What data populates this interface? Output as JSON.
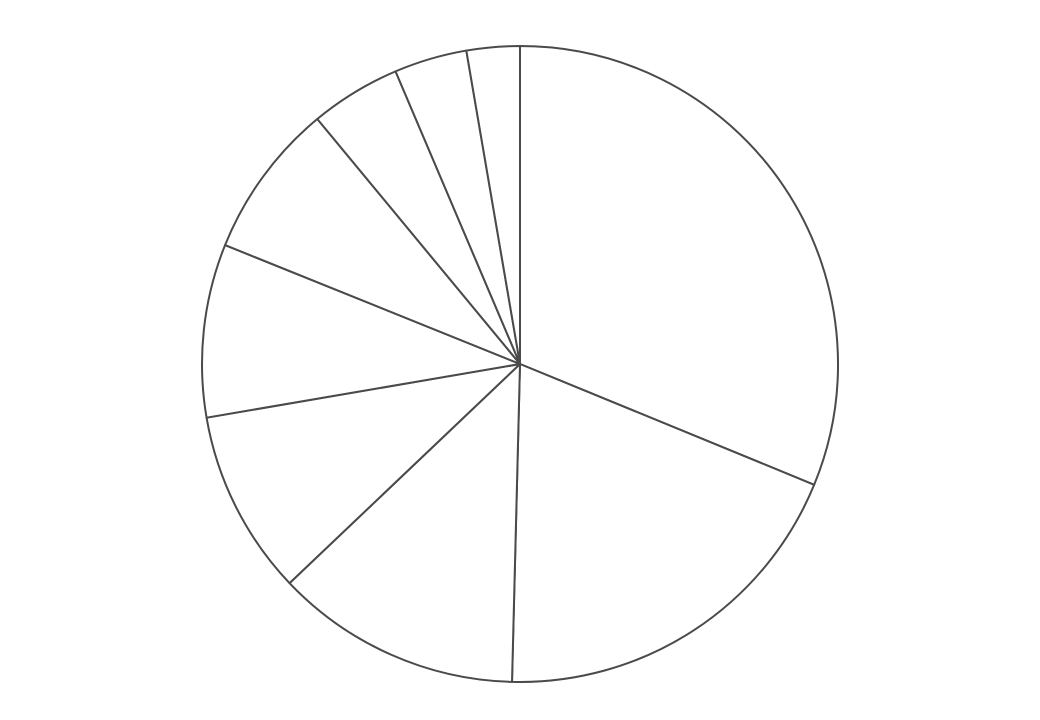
{
  "chart_data": {
    "type": "pie",
    "start_angle_deg": 90,
    "direction": "clockwise",
    "colors": {
      "fill": "#ffffff",
      "stroke": "#4a4a4a",
      "background": "#ffffff"
    },
    "slices": [
      {
        "value": 31.2
      },
      {
        "value": 19.2
      },
      {
        "value": 12.5
      },
      {
        "value": 9.4
      },
      {
        "value": 8.8
      },
      {
        "value": 7.9
      },
      {
        "value": 4.6
      },
      {
        "value": 3.7
      },
      {
        "value": 2.7
      }
    ]
  }
}
